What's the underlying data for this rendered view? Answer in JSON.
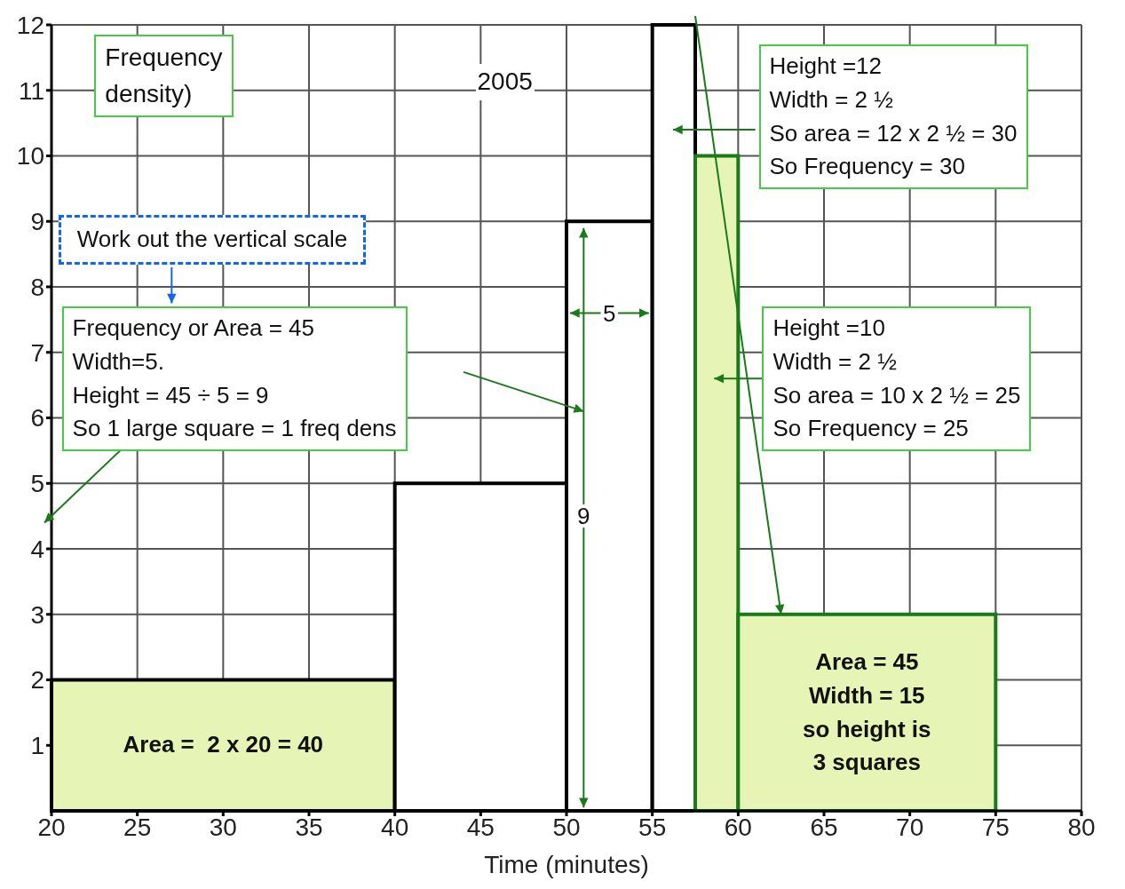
{
  "chart_data": {
    "type": "histogram",
    "xlabel": "Time (minutes)",
    "bins": [
      20,
      40,
      50,
      55,
      57.5,
      60,
      75
    ],
    "values": [
      2,
      5,
      9,
      12,
      10,
      3
    ],
    "colors": [
      "#e6f5b5",
      "#ffffff",
      "#ffffff",
      "#ffffff",
      "#e6f5b5",
      "#e6f5b5"
    ],
    "xlim": [
      20,
      80
    ],
    "xticks": [
      20,
      25,
      30,
      35,
      40,
      45,
      50,
      55,
      60,
      65,
      70,
      75,
      80
    ],
    "ylim": [
      0,
      12
    ],
    "yticks": [
      1,
      2,
      3,
      4,
      5,
      6,
      7,
      8,
      9,
      10,
      11,
      12
    ],
    "grid": true,
    "annotations": [
      "Frequency\ndensity)",
      "2005",
      "Height =12\nWidth = 2 ½\nSo area = 12 x 2 ½ = 30\nSo Frequency = 30",
      "Work out the vertical scale",
      "Frequency or Area = 45\nWidth=5.\nHeight = 45 ÷ 5 = 9\nSo 1 large square = 1 freq dens",
      "Height =10\nWidth = 2 ½\nSo area = 10 x 2 ½ = 25\nSo Frequency = 25",
      {
        "text": "Area = 45\nWidth = 15\nso height is\n3 squares",
        "x": 67.5,
        "y": 3
      },
      {
        "text": "Area =  2 x 20 = 40",
        "x": 30,
        "y": 2
      },
      {
        "text": "5",
        "x": 52.5,
        "y": 7.6
      },
      {
        "text": "9",
        "x": 51,
        "y": 4.5
      }
    ]
  }
}
